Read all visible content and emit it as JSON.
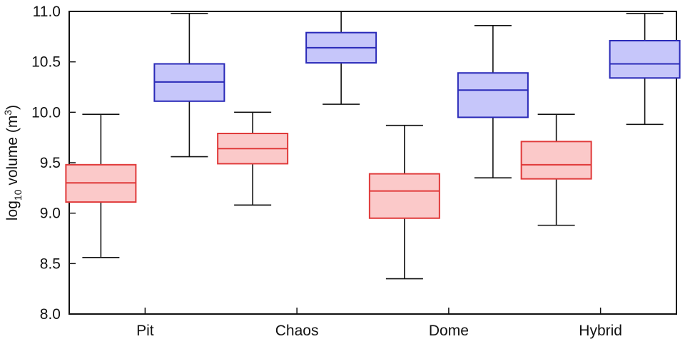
{
  "chart_data": {
    "type": "box",
    "categories": [
      "Pit",
      "Chaos",
      "Dome",
      "Hybrid"
    ],
    "ylabel": {
      "base": "log",
      "sub": "10",
      "mid": " volume (m",
      "sup": "3",
      "end": ")"
    },
    "ylim": [
      8.0,
      11.0
    ],
    "yticks": [
      "8.0",
      "8.5",
      "9.0",
      "9.5",
      "10.0",
      "10.5",
      "11.0"
    ],
    "grid": false,
    "series": [
      {
        "color": "#e03a3a",
        "fill": "#fbc9c9",
        "boxes": [
          {
            "whisker_low": 8.56,
            "q1": 9.11,
            "median": 9.3,
            "q3": 9.48,
            "whisker_high": 9.98
          },
          {
            "whisker_low": 9.08,
            "q1": 9.49,
            "median": 9.64,
            "q3": 9.79,
            "whisker_high": 10.0
          },
          {
            "whisker_low": 8.35,
            "q1": 8.95,
            "median": 9.22,
            "q3": 9.39,
            "whisker_high": 9.87
          },
          {
            "whisker_low": 8.88,
            "q1": 9.34,
            "median": 9.48,
            "q3": 9.71,
            "whisker_high": 9.98
          }
        ]
      },
      {
        "color": "#2a2ab8",
        "fill": "#c6c6fa",
        "boxes": [
          {
            "whisker_low": 9.56,
            "q1": 10.11,
            "median": 10.3,
            "q3": 10.48,
            "whisker_high": 10.98
          },
          {
            "whisker_low": 10.08,
            "q1": 10.49,
            "median": 10.64,
            "q3": 10.79,
            "whisker_high": 11.0
          },
          {
            "whisker_low": 9.35,
            "q1": 9.95,
            "median": 10.22,
            "q3": 10.39,
            "whisker_high": 10.86
          },
          {
            "whisker_low": 9.88,
            "q1": 10.34,
            "median": 10.48,
            "q3": 10.71,
            "whisker_high": 10.98
          }
        ]
      }
    ]
  }
}
